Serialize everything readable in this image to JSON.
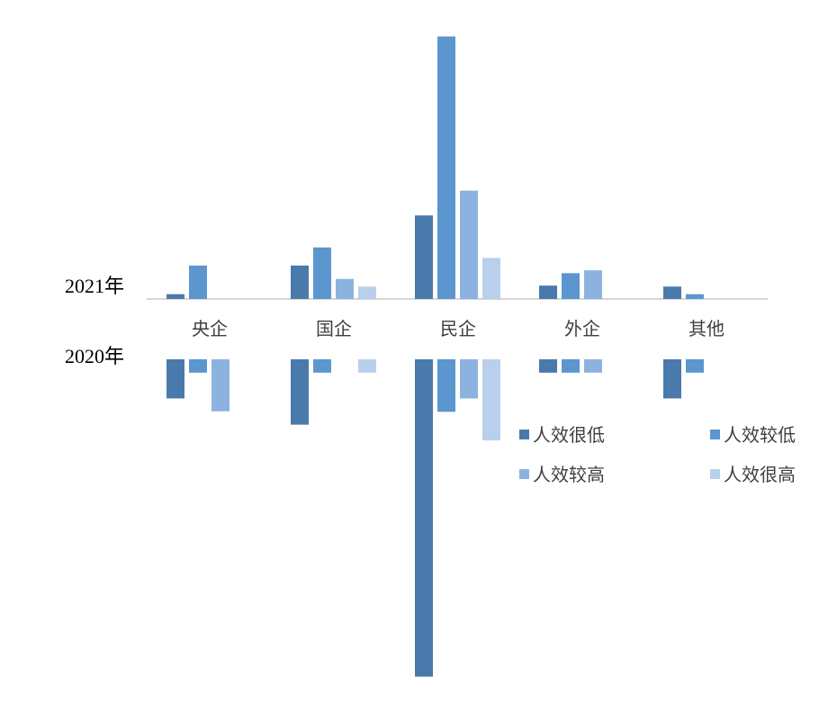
{
  "chart_data": {
    "type": "bar",
    "layout": "mirrored",
    "categories": [
      "央企",
      "国企",
      "民企",
      "外企",
      "其他"
    ],
    "rows": [
      {
        "label": "2021年",
        "direction": "up",
        "series": [
          {
            "name": "人效很低",
            "values": [
              1,
              7,
              17.5,
              2.8,
              2.6
            ]
          },
          {
            "name": "人效较低",
            "values": [
              7,
              10.8,
              55,
              5.4,
              1
            ]
          },
          {
            "name": "人效较高",
            "values": [
              0,
              4.2,
              22.7,
              6,
              0
            ]
          },
          {
            "name": "人效很高",
            "values": [
              0,
              2.6,
              8.6,
              0,
              0
            ]
          }
        ]
      },
      {
        "label": "2020年",
        "direction": "down",
        "series": [
          {
            "name": "人效很低",
            "values": [
              8.2,
              13.7,
              66.5,
              2.8,
              8.2
            ]
          },
          {
            "name": "人效较低",
            "values": [
              2.8,
              2.8,
              11,
              2.8,
              2.8
            ]
          },
          {
            "name": "人效较高",
            "values": [
              10.9,
              0,
              8.2,
              2.8,
              0
            ]
          },
          {
            "name": "人效很高",
            "values": [
              0,
              2.8,
              17,
              0,
              0
            ]
          }
        ]
      }
    ],
    "colors": [
      "#4a7aab",
      "#5b96cf",
      "#8cb3df",
      "#b9d0ec"
    ],
    "legend": [
      "人效很低",
      "人效较低",
      "人效较高",
      "人效很高"
    ],
    "legend_position": "right",
    "grid": false
  }
}
